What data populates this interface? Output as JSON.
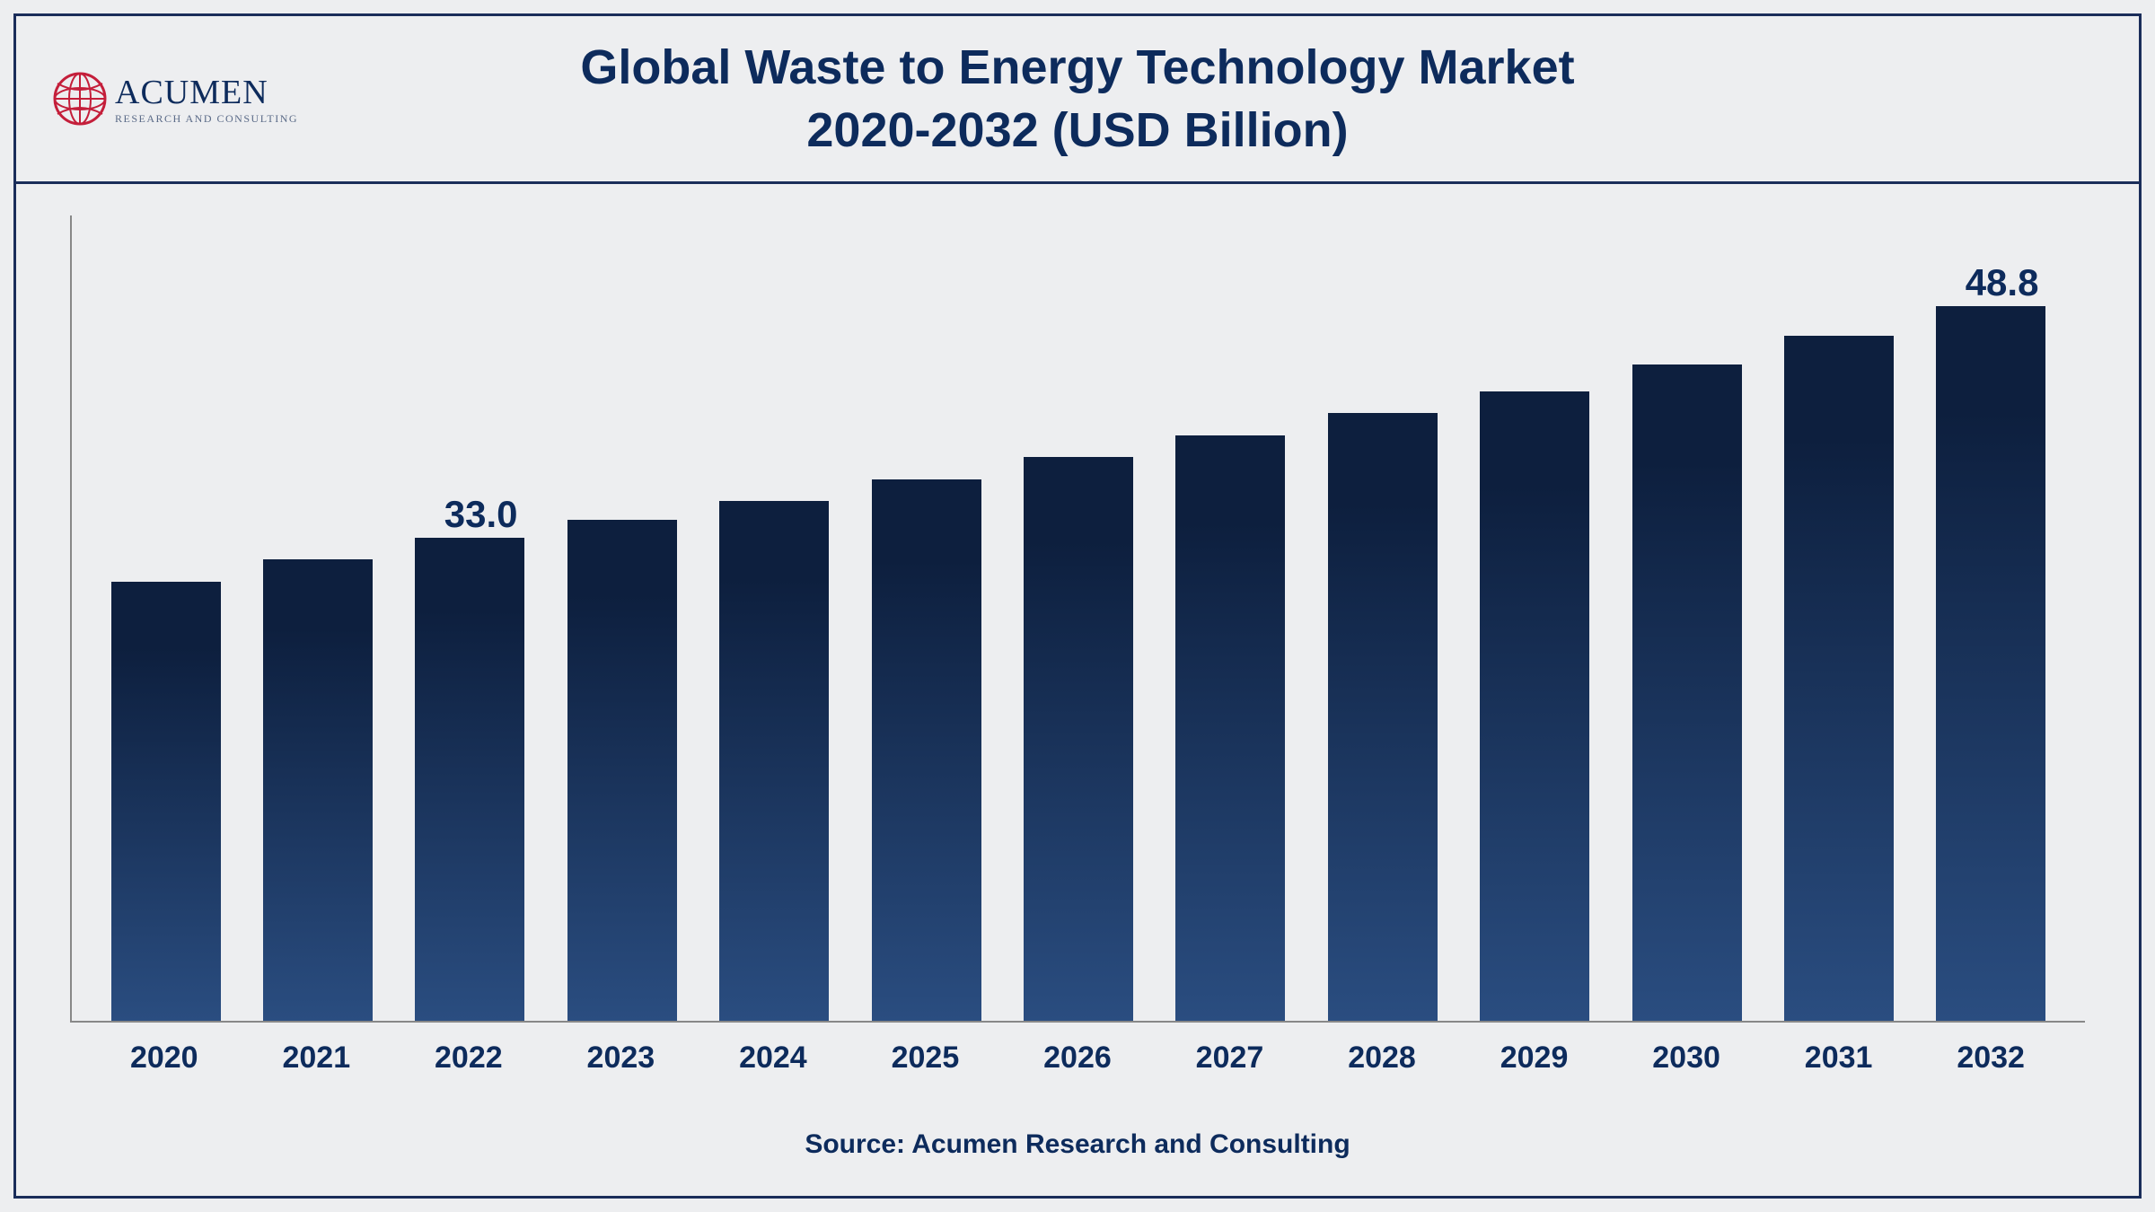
{
  "header": {
    "logo_name": "ACUMEN",
    "logo_tagline": "RESEARCH AND CONSULTING",
    "title_line1": "Global Waste to Energy Technology Market",
    "title_line2": "2020-2032 (USD Billion)"
  },
  "chart": {
    "type": "bar",
    "categories": [
      "2020",
      "2021",
      "2022",
      "2023",
      "2024",
      "2025",
      "2026",
      "2027",
      "2028",
      "2029",
      "2030",
      "2031",
      "2032"
    ],
    "values": [
      30.0,
      31.5,
      33.0,
      34.2,
      35.5,
      37.0,
      38.5,
      40.0,
      41.5,
      43.0,
      44.8,
      46.8,
      48.8
    ],
    "visible_labels": {
      "2": "33.0",
      "12": "48.8"
    },
    "ylim": [
      0,
      55
    ],
    "bar_gradient_top": "#0d1f3e",
    "bar_gradient_bottom": "#2a4d80",
    "bar_width_pct": 72,
    "axis_color": "#888888",
    "background_color": "#edeef0",
    "border_color": "#1a2d5a",
    "title_color": "#0d2b5c",
    "title_fontsize": 54,
    "label_fontsize": 34,
    "value_label_fontsize": 42
  },
  "footer": {
    "source": "Source: Acumen Research and Consulting"
  }
}
